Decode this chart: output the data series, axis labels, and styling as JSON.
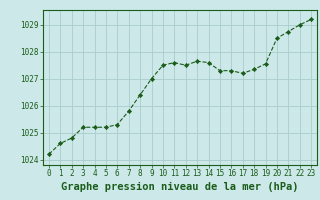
{
  "x": [
    0,
    1,
    2,
    3,
    4,
    5,
    6,
    7,
    8,
    9,
    10,
    11,
    12,
    13,
    14,
    15,
    16,
    17,
    18,
    19,
    20,
    21,
    22,
    23
  ],
  "y": [
    1024.2,
    1024.6,
    1024.8,
    1025.2,
    1025.2,
    1025.2,
    1025.3,
    1025.8,
    1026.4,
    1027.0,
    1027.5,
    1027.6,
    1027.5,
    1027.65,
    1027.6,
    1027.3,
    1027.3,
    1027.2,
    1027.35,
    1027.55,
    1028.5,
    1028.75,
    1029.0,
    1029.2
  ],
  "line_color": "#1a5c1a",
  "marker_color": "#1a5c1a",
  "bg_color": "#cce8e8",
  "grid_color": "#aacccc",
  "border_color": "#1a5c1a",
  "xlabel": "Graphe pression niveau de la mer (hPa)",
  "xlabel_color": "#1a5c1a",
  "tick_color": "#1a5c1a",
  "ylim": [
    1023.8,
    1029.55
  ],
  "yticks": [
    1024,
    1025,
    1026,
    1027,
    1028,
    1029
  ],
  "xticks": [
    0,
    1,
    2,
    3,
    4,
    5,
    6,
    7,
    8,
    9,
    10,
    11,
    12,
    13,
    14,
    15,
    16,
    17,
    18,
    19,
    20,
    21,
    22,
    23
  ],
  "tick_fontsize": 5.5,
  "xlabel_fontsize": 7.5
}
